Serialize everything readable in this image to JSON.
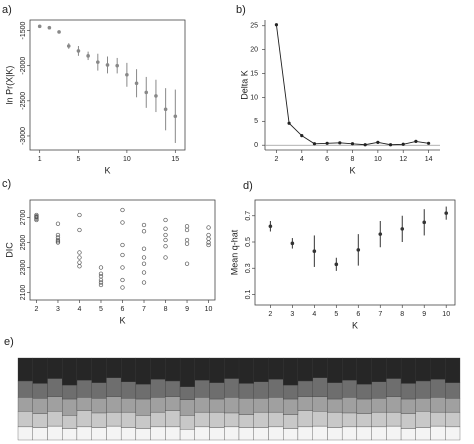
{
  "chart_data": [
    {
      "type": "errorbar",
      "label": "a)",
      "xlabel": "K",
      "ylabel": "ln Pr(X|K)",
      "x": [
        1,
        2,
        3,
        4,
        5,
        6,
        7,
        8,
        9,
        10,
        11,
        12,
        13,
        14,
        15
      ],
      "values": [
        -1440,
        -1460,
        -1520,
        -1720,
        -1790,
        -1860,
        -1950,
        -1990,
        -2000,
        -2130,
        -2250,
        -2380,
        -2430,
        -2620,
        -2720
      ],
      "errors": [
        10,
        10,
        20,
        40,
        70,
        60,
        120,
        120,
        110,
        170,
        200,
        220,
        230,
        300,
        380
      ],
      "color": "#888888",
      "xlim": [
        0,
        16
      ],
      "xticks": [
        1,
        5,
        10,
        15
      ],
      "ylim": [
        -3200,
        -1350
      ],
      "yticks": [
        -1500,
        -2000,
        -2500,
        -3000
      ]
    },
    {
      "type": "line",
      "label": "b)",
      "xlabel": "K",
      "ylabel": "Delta K",
      "x": [
        2,
        3,
        4,
        5,
        6,
        7,
        8,
        9,
        10,
        11,
        12,
        13,
        14
      ],
      "values": [
        25.2,
        4.6,
        2.0,
        0.3,
        0.4,
        0.5,
        0.3,
        0.1,
        0.6,
        0.1,
        0.2,
        0.8,
        0.4
      ],
      "color": "#222222",
      "hline": 0,
      "xlim": [
        1.1,
        14.9
      ],
      "xticks": [
        2,
        4,
        6,
        8,
        10,
        12,
        14
      ],
      "ylim": [
        -1,
        26.2
      ],
      "yticks": [
        0,
        5,
        10,
        15,
        20,
        25
      ]
    },
    {
      "type": "scatter",
      "label": "c)",
      "xlabel": "K",
      "ylabel": "DIC",
      "x": [
        2,
        2,
        2,
        2,
        2,
        2,
        3,
        3,
        3,
        3,
        3,
        3,
        4,
        4,
        4,
        4,
        4,
        4,
        5,
        5,
        5,
        5,
        5,
        5,
        6,
        6,
        6,
        6,
        6,
        6,
        6,
        7,
        7,
        7,
        7,
        7,
        7,
        7,
        8,
        8,
        8,
        8,
        8,
        8,
        9,
        9,
        9,
        9,
        9,
        10,
        10,
        10,
        10,
        10
      ],
      "values": [
        2690,
        2700,
        2710,
        2720,
        2680,
        2705,
        2650,
        2560,
        2540,
        2520,
        2510,
        2500,
        2720,
        2600,
        2420,
        2380,
        2340,
        2310,
        2300,
        2250,
        2230,
        2200,
        2180,
        2160,
        2760,
        2660,
        2480,
        2400,
        2300,
        2200,
        2140,
        2640,
        2590,
        2450,
        2380,
        2330,
        2260,
        2180,
        2680,
        2610,
        2560,
        2520,
        2470,
        2380,
        2630,
        2600,
        2520,
        2490,
        2330,
        2620,
        2560,
        2530,
        2500,
        2480
      ],
      "color": "#555555",
      "xlim": [
        1.7,
        10.3
      ],
      "xticks": [
        2,
        3,
        4,
        5,
        6,
        7,
        8,
        9,
        10
      ],
      "ylim": [
        2040,
        2840
      ],
      "yticks": [
        2100,
        2300,
        2500,
        2700
      ]
    },
    {
      "type": "errorbar",
      "label": "d)",
      "xlabel": "K",
      "ylabel": "Mean q-hat",
      "x": [
        2,
        3,
        4,
        5,
        6,
        7,
        8,
        9,
        10
      ],
      "values": [
        0.62,
        0.49,
        0.43,
        0.33,
        0.44,
        0.56,
        0.6,
        0.65,
        0.72
      ],
      "errors": [
        0.04,
        0.04,
        0.12,
        0.05,
        0.12,
        0.1,
        0.1,
        0.1,
        0.05
      ],
      "color": "#333333",
      "xlim": [
        1.3,
        10.4
      ],
      "xticks": [
        2,
        3,
        4,
        5,
        6,
        7,
        8,
        9,
        10
      ],
      "ylim": [
        0.02,
        0.82
      ],
      "yticks": [
        0.1,
        0.3,
        0.5,
        0.7
      ]
    },
    {
      "type": "stacked_bar",
      "label": "e)",
      "ylim": [
        0,
        1
      ],
      "series": [
        {
          "color": "#f4f4f4",
          "values": [
            0.16,
            0.15,
            0.17,
            0.14,
            0.16,
            0.15,
            0.17,
            0.15,
            0.14,
            0.16,
            0.16,
            0.13,
            0.16,
            0.15,
            0.16,
            0.15,
            0.15,
            0.16,
            0.14,
            0.16,
            0.17,
            0.15,
            0.16,
            0.16,
            0.16,
            0.17,
            0.14,
            0.15,
            0.17,
            0.16
          ]
        },
        {
          "color": "#c8c8c8",
          "values": [
            0.19,
            0.17,
            0.18,
            0.16,
            0.2,
            0.18,
            0.17,
            0.19,
            0.16,
            0.18,
            0.2,
            0.17,
            0.18,
            0.19,
            0.17,
            0.16,
            0.19,
            0.18,
            0.17,
            0.2,
            0.18,
            0.19,
            0.17,
            0.16,
            0.18,
            0.17,
            0.18,
            0.2,
            0.17,
            0.18
          ]
        },
        {
          "color": "#a0a0a0",
          "values": [
            0.17,
            0.19,
            0.18,
            0.2,
            0.16,
            0.18,
            0.19,
            0.17,
            0.2,
            0.18,
            0.17,
            0.19,
            0.18,
            0.16,
            0.19,
            0.2,
            0.17,
            0.18,
            0.19,
            0.17,
            0.18,
            0.16,
            0.19,
            0.18,
            0.17,
            0.19,
            0.18,
            0.16,
            0.18,
            0.17
          ]
        },
        {
          "color": "#6e6e6e",
          "values": [
            0.2,
            0.18,
            0.22,
            0.17,
            0.21,
            0.19,
            0.23,
            0.2,
            0.18,
            0.22,
            0.19,
            0.16,
            0.21,
            0.2,
            0.23,
            0.18,
            0.2,
            0.22,
            0.17,
            0.19,
            0.23,
            0.2,
            0.21,
            0.18,
            0.2,
            0.22,
            0.19,
            0.21,
            0.22,
            0.19
          ]
        },
        {
          "color": "#262626",
          "values": [
            0.28,
            0.31,
            0.25,
            0.33,
            0.27,
            0.3,
            0.24,
            0.29,
            0.32,
            0.26,
            0.28,
            0.35,
            0.27,
            0.3,
            0.25,
            0.31,
            0.29,
            0.26,
            0.33,
            0.28,
            0.24,
            0.3,
            0.27,
            0.32,
            0.29,
            0.25,
            0.31,
            0.28,
            0.26,
            0.3
          ]
        }
      ]
    }
  ]
}
